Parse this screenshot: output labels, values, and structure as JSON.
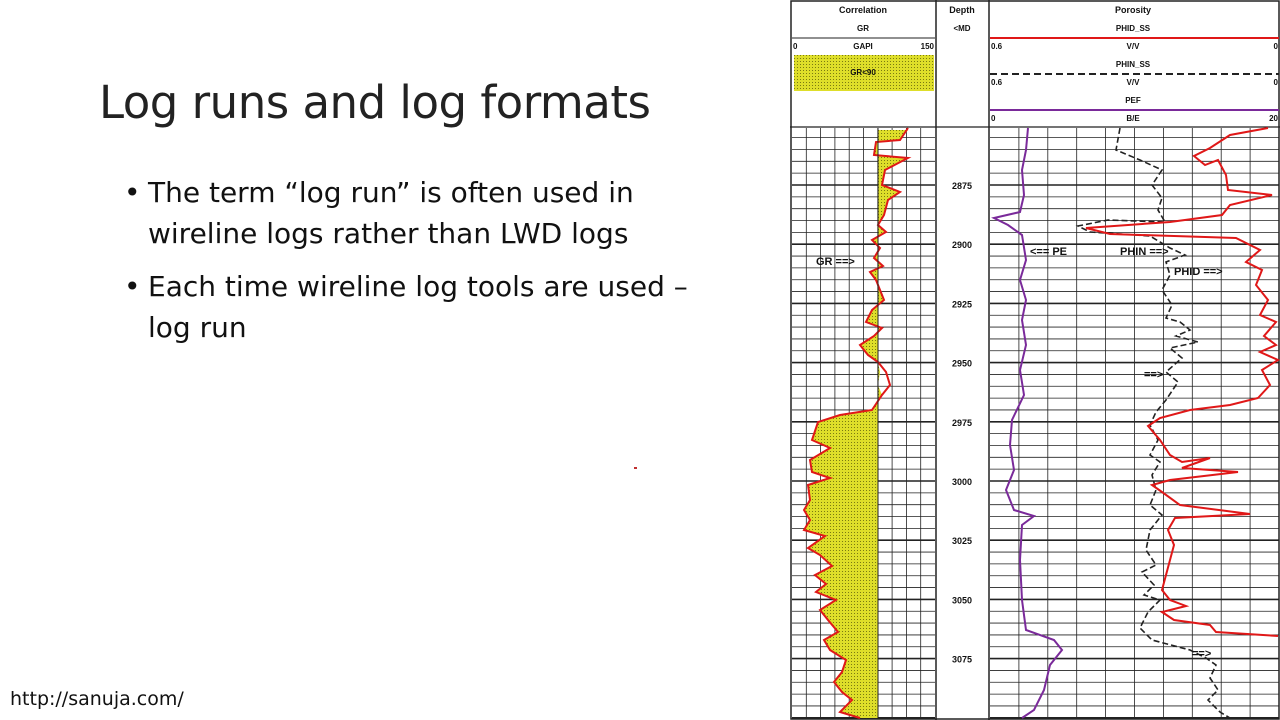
{
  "slide": {
    "title": "Log runs and log formats",
    "bullets": [
      "The term “log run” is often used in wireline logs rather than LWD logs",
      "Each time wireline log tools are used – log run"
    ],
    "footer_url": "http://sanuja.com/"
  },
  "log_plot": {
    "header": {
      "correlation": "Correlation",
      "gr": "GR",
      "gr_scale_min": "0",
      "gr_unit": "GAPI",
      "gr_scale_max": "150",
      "gr_fill_label": "GR<90",
      "depth": "Depth",
      "md": "<MD",
      "porosity": "Porosity",
      "phid": "PHID_SS",
      "phid_min": "0.6",
      "phid_unit": "V/V",
      "phid_max": "0",
      "phin": "PHIN_SS",
      "phin_min": "0.6",
      "phin_unit": "V/V",
      "phin_max": "0",
      "pef": "PEF",
      "pef_min": "0",
      "pef_unit": "B/E",
      "pef_max": "20"
    },
    "depth_labels": [
      "2875",
      "2900",
      "2925",
      "2950",
      "2975",
      "3000",
      "3025",
      "3050",
      "3075"
    ],
    "annotations": {
      "gr": "GR ==>",
      "pe": "<== PE",
      "phin": "PHIN ==>",
      "phid": "PHID ==>",
      "arrow_1": "==>",
      "arrow_2": "==>"
    },
    "colors": {
      "gr_fill": "#d8d820",
      "red_curve": "#e01818",
      "pef_curve": "#7a2a9a",
      "grid": "#222222"
    }
  }
}
